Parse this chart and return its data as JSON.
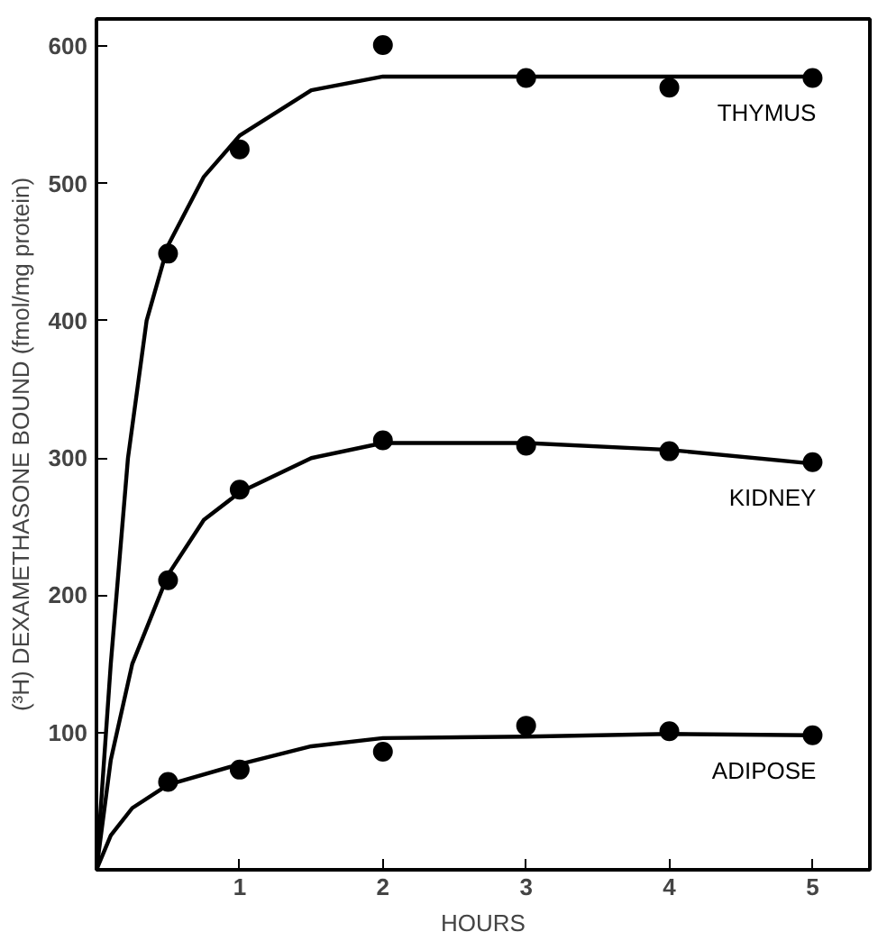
{
  "chart_data": {
    "type": "scatter",
    "xlabel": "HOURS",
    "ylabel": "(³H) DEXAMETHASONE BOUND (fmol/mg protein)",
    "xlim": [
      0,
      5.4
    ],
    "ylim": [
      0,
      620
    ],
    "xticks": [
      1,
      2,
      3,
      4,
      5
    ],
    "yticks": [
      100,
      200,
      300,
      400,
      500,
      600
    ],
    "grid": false,
    "marker": "circle",
    "series": [
      {
        "name": "THYMUS",
        "color": "#000000",
        "x": [
          0.5,
          1,
          2,
          3,
          4,
          5
        ],
        "values": [
          449,
          525,
          601,
          577,
          570,
          577
        ]
      },
      {
        "name": "KIDNEY",
        "color": "#000000",
        "x": [
          0.5,
          1,
          2,
          3,
          4,
          5
        ],
        "values": [
          211,
          277,
          313,
          309,
          305,
          297
        ]
      },
      {
        "name": "ADIPOSE",
        "color": "#000000",
        "x": [
          0.5,
          1,
          2,
          3,
          4,
          5
        ],
        "values": [
          64,
          73,
          86,
          105,
          101,
          98
        ]
      },
      {
        "type": "line",
        "marker": "none",
        "color": "#000000",
        "line_style": "solid",
        "x": [
          0,
          0.1,
          0.22,
          0.35,
          0.5,
          0.75,
          1,
          1.5,
          2,
          3,
          4,
          5
        ],
        "values": [
          0,
          150,
          300,
          400,
          455,
          505,
          535,
          568,
          578,
          578,
          578,
          578
        ]
      },
      {
        "type": "line",
        "marker": "none",
        "color": "#000000",
        "line_style": "solid",
        "x": [
          0,
          0.1,
          0.25,
          0.5,
          0.75,
          1,
          1.5,
          2,
          3,
          4,
          5
        ],
        "values": [
          0,
          80,
          150,
          215,
          255,
          275,
          300,
          311,
          311,
          306,
          296
        ]
      },
      {
        "type": "line",
        "marker": "none",
        "color": "#000000",
        "line_style": "solid",
        "x": [
          0,
          0.1,
          0.25,
          0.5,
          1,
          1.5,
          2,
          3,
          4,
          5
        ],
        "values": [
          0,
          25,
          45,
          62,
          77,
          90,
          96,
          97,
          99,
          98
        ]
      }
    ]
  }
}
